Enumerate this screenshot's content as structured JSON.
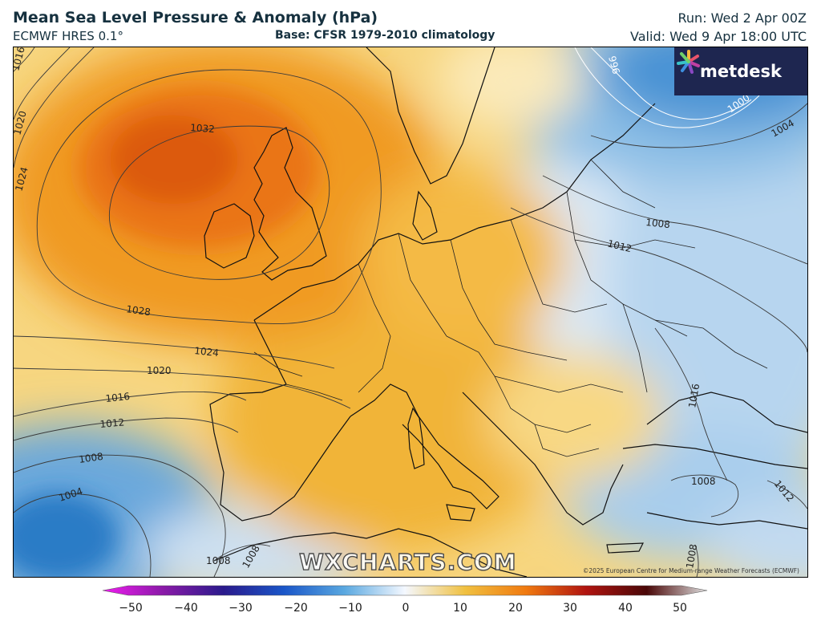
{
  "header": {
    "title": "Mean Sea Level Pressure & Anomaly (hPa)",
    "subtitle": "ECMWF HRES 0.1°",
    "base": "Base: CFSR 1979-2010 climatology",
    "run": "Run: Wed 2 Apr 00Z",
    "valid": "Valid: Wed 9 Apr 18:00 UTC"
  },
  "logo": {
    "text": "metdesk",
    "icon": "metdesk-flower-icon"
  },
  "watermark": "WXCHARTS.COM",
  "copyright": "©2025 European Centre for Medium-range Weather Forecasts (ECMWF)",
  "isobar_labels": [
    {
      "id": "iso-1016-nw",
      "text": "1016"
    },
    {
      "id": "iso-1020-nw",
      "text": "1020"
    },
    {
      "id": "iso-1024-nw",
      "text": "1024"
    },
    {
      "id": "iso-1032",
      "text": "1032"
    },
    {
      "id": "iso-1028",
      "text": "1028"
    },
    {
      "id": "iso-1024-bay",
      "text": "1024"
    },
    {
      "id": "iso-1020-iberia",
      "text": "1020"
    },
    {
      "id": "iso-1016-w",
      "text": "1016"
    },
    {
      "id": "iso-1012-w",
      "text": "1012"
    },
    {
      "id": "iso-1008-w",
      "text": "1008"
    },
    {
      "id": "iso-1004-w",
      "text": "1004"
    },
    {
      "id": "iso-1008-sw",
      "text": "1008"
    },
    {
      "id": "iso-1008-nafr",
      "text": "1008"
    },
    {
      "id": "iso-996",
      "text": "996"
    },
    {
      "id": "iso-1000",
      "text": "1000"
    },
    {
      "id": "iso-1004-ne",
      "text": "1004"
    },
    {
      "id": "iso-1008-e",
      "text": "1008"
    },
    {
      "id": "iso-1012-e",
      "text": "1012"
    },
    {
      "id": "iso-1016-se",
      "text": "1016"
    },
    {
      "id": "iso-1008-aegean",
      "text": "1008"
    },
    {
      "id": "iso-1012-turkey",
      "text": "1012"
    },
    {
      "id": "iso-1008-egypt",
      "text": "1008"
    }
  ],
  "colorbar": {
    "ticks": [
      "−50",
      "−40",
      "−30",
      "−20",
      "−10",
      "0",
      "10",
      "20",
      "30",
      "40",
      "50"
    ],
    "colors": [
      "#f01cf0",
      "#8a1aa8",
      "#2a1a8c",
      "#1a56c8",
      "#5aa8e0",
      "#f4f8ff",
      "#f0c040",
      "#f07a10",
      "#b01410",
      "#4a0808",
      "#e0e0e0"
    ]
  },
  "colors": {
    "high_core": "#e45a10",
    "high": "#f29620",
    "warm": "#f4bf40",
    "pale": "#fbe9a8",
    "neutral": "#f3f6f8",
    "cool": "#a9cdec",
    "low": "#4f9ad8",
    "low_core": "#1f6fbf"
  }
}
